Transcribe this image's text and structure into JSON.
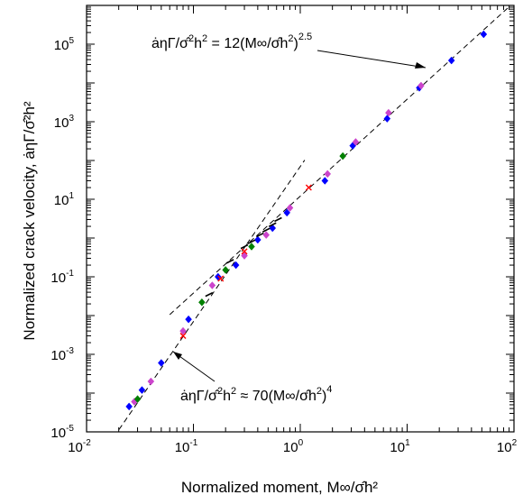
{
  "chart_data": {
    "type": "scatter",
    "title": "",
    "xlabel": "Normalized moment, M∞/σ̂h²",
    "ylabel": "Normalized crack velocity, ȧηΓ/σ̂²h²",
    "x_scale": "log",
    "y_scale": "log",
    "xlim": [
      0.01,
      100
    ],
    "ylim": [
      1e-05,
      1000000
    ],
    "grid": false,
    "x_ticks": [
      {
        "base": "10",
        "exp": "-2",
        "value": 0.01
      },
      {
        "base": "10",
        "exp": "-1",
        "value": 0.1
      },
      {
        "base": "10",
        "exp": "0",
        "value": 1
      },
      {
        "base": "10",
        "exp": "1",
        "value": 10
      },
      {
        "base": "10",
        "exp": "2",
        "value": 100
      }
    ],
    "y_ticks": [
      {
        "base": "10",
        "exp": "-5",
        "value": 1e-05
      },
      {
        "base": "10",
        "exp": "-3",
        "value": 0.001
      },
      {
        "base": "10",
        "exp": "-1",
        "value": 0.1
      },
      {
        "base": "10",
        "exp": "1",
        "value": 10
      },
      {
        "base": "10",
        "exp": "3",
        "value": 1000
      },
      {
        "base": "10",
        "exp": "5",
        "value": 100000
      }
    ],
    "fits": [
      {
        "label_left": "ȧηΓ/σ̂",
        "sup1": "2",
        "label_mid": "h",
        "sup2": "2",
        "label_right": " = 12(M∞/σ̂h",
        "sup3": "2",
        "label_close": ")",
        "sup4": "2.5",
        "coefficient": 12,
        "exponent": 2.5,
        "x_range": [
          0.06,
          100
        ]
      },
      {
        "label_left": "ȧηΓ/σ̂",
        "sup1": "2",
        "label_mid": "h",
        "sup2": "2",
        "label_right": " ≈ 70(M∞/σ̂h",
        "sup3": "2",
        "label_close": ")",
        "sup4": "4",
        "coefficient": 70,
        "exponent": 4,
        "x_range": [
          0.018,
          1.1
        ]
      }
    ],
    "series": [
      {
        "color": "#0000ff",
        "marker": "diamond",
        "points": [
          [
            0.025,
            4.5e-05
          ],
          [
            0.033,
            0.00012
          ],
          [
            0.05,
            0.0006
          ],
          [
            0.09,
            0.008
          ],
          [
            0.17,
            0.1
          ],
          [
            0.25,
            0.2
          ],
          [
            0.4,
            0.9
          ],
          [
            0.55,
            1.8
          ],
          [
            0.75,
            4.5
          ],
          [
            1.7,
            30
          ],
          [
            3.1,
            240
          ],
          [
            6.5,
            1200
          ],
          [
            13,
            7500
          ],
          [
            26,
            38000
          ],
          [
            52,
            180000
          ]
        ]
      },
      {
        "color": "#cc44cc",
        "marker": "diamond",
        "points": [
          [
            0.028,
            6e-05
          ],
          [
            0.04,
            0.0002
          ],
          [
            0.08,
            0.004
          ],
          [
            0.15,
            0.06
          ],
          [
            0.3,
            0.35
          ],
          [
            0.48,
            1.2
          ],
          [
            0.8,
            6
          ],
          [
            1.8,
            45
          ],
          [
            3.3,
            300
          ],
          [
            6.7,
            1700
          ],
          [
            13.5,
            8500
          ]
        ]
      },
      {
        "color": "#008000",
        "marker": "diamond",
        "points": [
          [
            0.03,
            7e-05
          ],
          [
            0.12,
            0.022
          ],
          [
            0.2,
            0.15
          ],
          [
            0.35,
            0.6
          ],
          [
            2.5,
            130
          ]
        ]
      },
      {
        "color": "#ff0000",
        "marker": "cross",
        "points": [
          [
            0.08,
            0.003
          ],
          [
            0.18,
            0.09
          ],
          [
            0.3,
            0.45
          ],
          [
            1.2,
            20
          ]
        ]
      },
      {
        "color": "#000000",
        "marker": "dash",
        "points": [
          [
            0.14,
            0.035
          ],
          [
            0.22,
            0.25
          ],
          [
            0.3,
            0.6
          ],
          [
            0.35,
            0.8
          ],
          [
            0.42,
            1.2
          ],
          [
            0.48,
            1.6
          ],
          [
            0.55,
            2.2
          ],
          [
            0.62,
            3
          ]
        ]
      }
    ]
  }
}
